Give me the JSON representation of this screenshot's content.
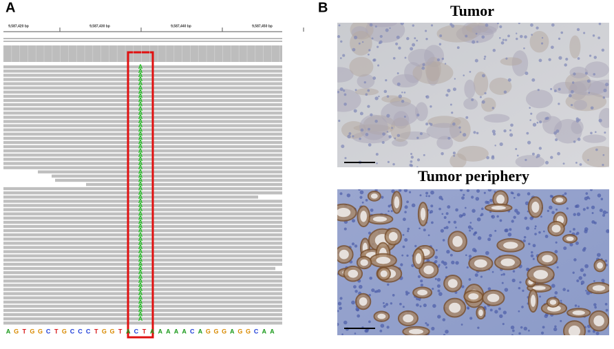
{
  "panels": {
    "a": {
      "label": "A",
      "ruler_ticks": [
        "9,587,420 bp",
        "9,587,430 bp",
        "9,587,440 bp",
        "9,587,450 bp"
      ],
      "variant_base": "A",
      "reference_sequence": [
        "A",
        "G",
        "T",
        "G",
        "G",
        "C",
        "T",
        "G",
        "C",
        "C",
        "C",
        "T",
        "G",
        "G",
        "T",
        "A",
        "C",
        "T",
        "A",
        "A",
        "A",
        "A",
        "A",
        "C",
        "A",
        "G",
        "G",
        "G",
        "A",
        "G",
        "G",
        "C",
        "A",
        "A"
      ]
    },
    "b": {
      "label": "B",
      "titles": [
        "Tumor",
        "Tumor periphery"
      ]
    }
  }
}
